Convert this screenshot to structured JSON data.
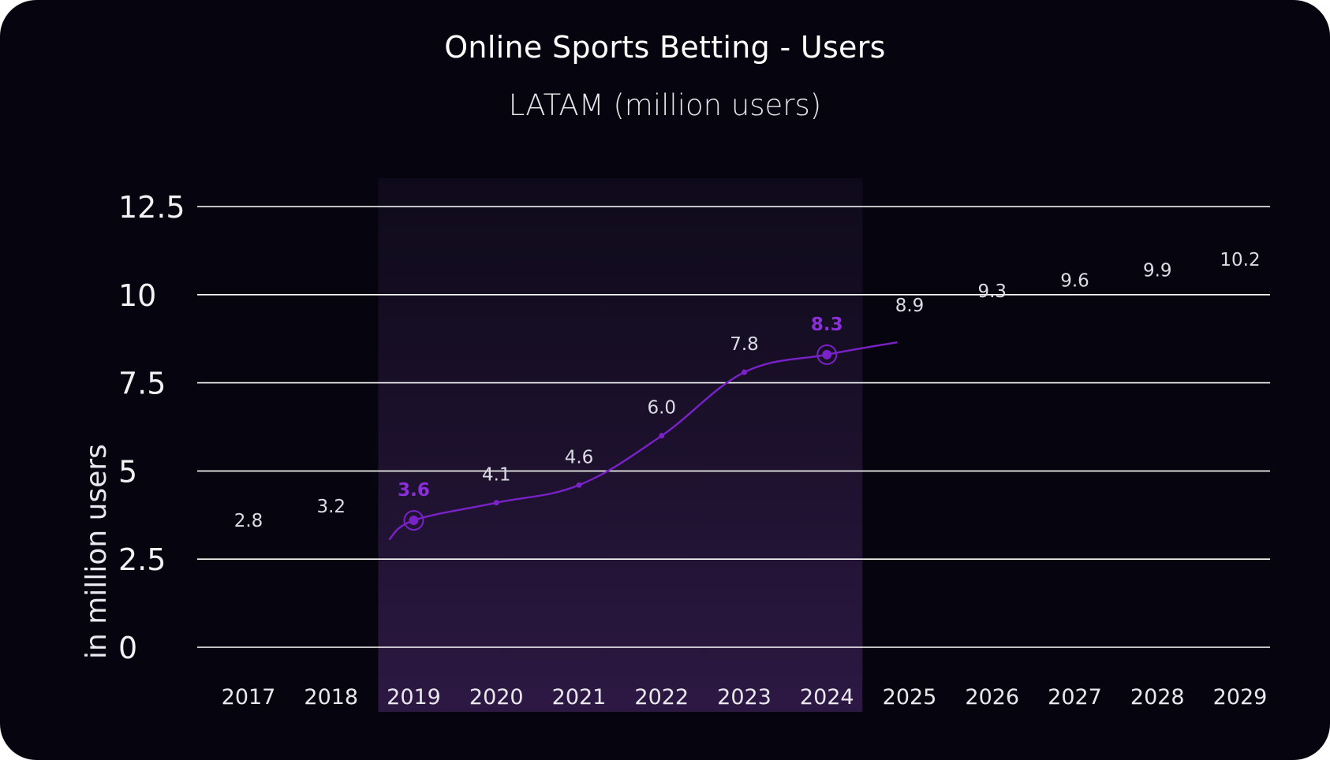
{
  "chart_data": {
    "type": "line",
    "title": "Online Sports Betting - Users",
    "subtitle": "LATAM (million users)",
    "ylabel": "in million users",
    "xlabel": "",
    "ylim": [
      0,
      12.5
    ],
    "yticks": [
      "0",
      "2.5",
      "5",
      "7.5",
      "10",
      "12.5"
    ],
    "ytick_values": [
      0,
      2.5,
      5,
      7.5,
      10,
      12.5
    ],
    "categories": [
      "2017",
      "2018",
      "2019",
      "2020",
      "2021",
      "2022",
      "2023",
      "2024",
      "2025",
      "2026",
      "2027",
      "2028",
      "2029"
    ],
    "values": [
      2.8,
      3.2,
      3.6,
      4.1,
      4.6,
      6.0,
      7.8,
      8.3,
      8.9,
      9.3,
      9.6,
      9.9,
      10.2
    ],
    "value_labels": [
      "2.8",
      "3.2",
      "3.6",
      "4.1",
      "4.6",
      "6.0",
      "7.8",
      "8.3",
      "8.9",
      "9.3",
      "9.6",
      "9.9",
      "10.2"
    ],
    "highlighted_points": [
      "2019",
      "2024"
    ],
    "highlight_range": [
      "2019",
      "2024"
    ],
    "grid": true,
    "colors": {
      "background": "#06050f",
      "line": "#7a22c8",
      "highlight_label": "#8b2fd9",
      "grid": "#ffffff"
    }
  }
}
